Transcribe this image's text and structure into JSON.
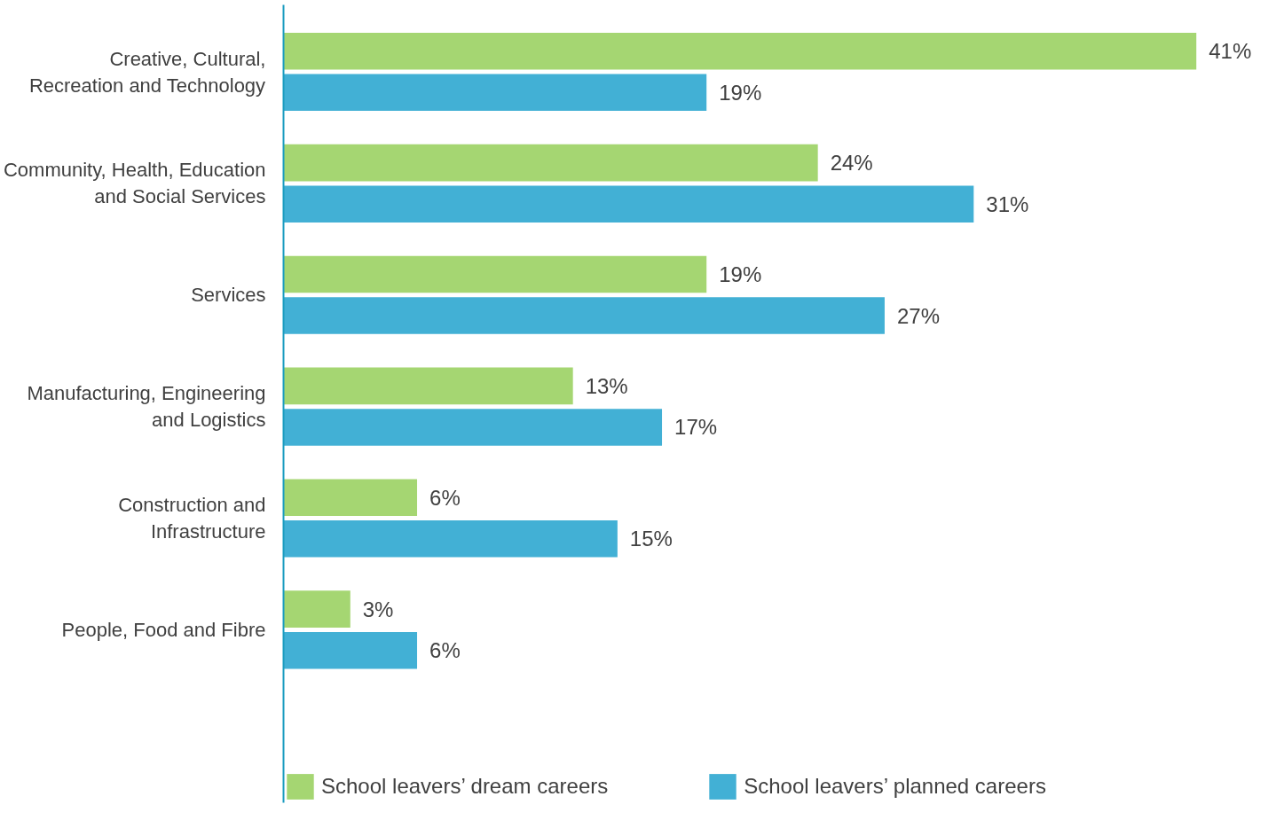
{
  "chart_data": {
    "type": "bar",
    "orientation": "horizontal",
    "categories": [
      "Creative, Cultural, Recreation and Technology",
      "Community, Health, Education and Social Services",
      "Services",
      "Manufacturing, Engineering and Logistics",
      "Construction and Infrastructure",
      "People, Food and Fibre"
    ],
    "series": [
      {
        "name": "School leavers’ dream careers",
        "color": "#a5d672",
        "values": [
          41,
          24,
          19,
          13,
          6,
          3
        ],
        "value_labels": [
          "41%",
          "24%",
          "19%",
          "13%",
          "6%",
          "3%"
        ]
      },
      {
        "name": "School leavers’ planned careers",
        "color": "#42b0d5",
        "values": [
          19,
          31,
          27,
          17,
          15,
          6
        ],
        "value_labels": [
          "19%",
          "31%",
          "27%",
          "17%",
          "15%",
          "6%"
        ]
      }
    ],
    "legend": "bottom",
    "grid": false
  }
}
